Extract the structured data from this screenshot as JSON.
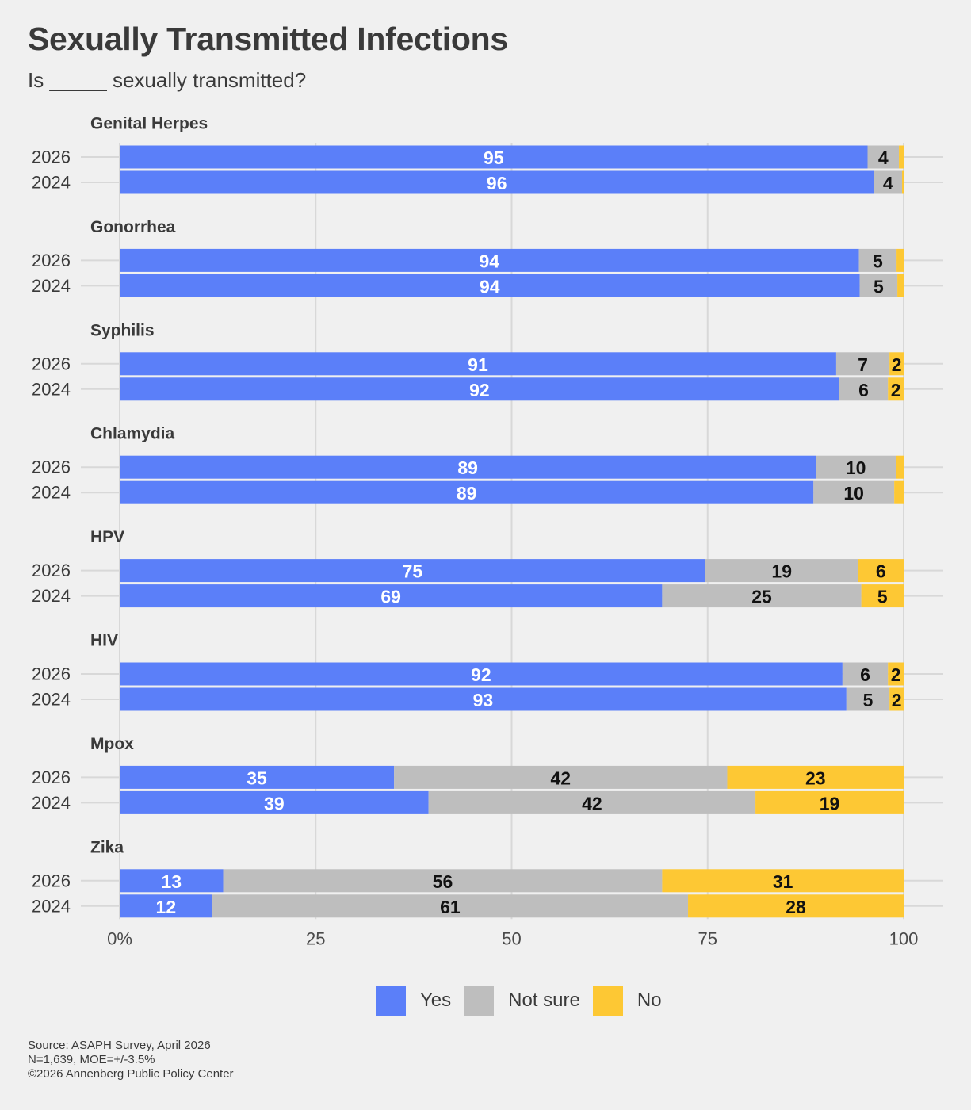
{
  "title": "Sexually Transmitted Infections",
  "subtitle": "Is _____ sexually transmitted?",
  "colors": {
    "yes": "#5b7ff9",
    "not_sure": "#bebebe",
    "no": "#fdc834",
    "background": "#f0f0f0",
    "grid": "#d8d8d8",
    "text": "#3a3a3a"
  },
  "legend": [
    {
      "label": "Yes",
      "color": "#5b7ff9"
    },
    {
      "label": "Not sure",
      "color": "#bebebe"
    },
    {
      "label": "No",
      "color": "#fdc834"
    }
  ],
  "footer": {
    "source": "Source: ASAPH Survey, April 2026",
    "sample": "N=1,639, MOE=+/-3.5%",
    "copyright": "©2026 Annenberg Public Policy Center"
  },
  "chart_data": {
    "type": "bar",
    "orientation": "horizontal",
    "stacked": true,
    "xlim": [
      0,
      100
    ],
    "x_ticks": [
      "0%",
      "25",
      "50",
      "75",
      "100"
    ],
    "x_tick_values": [
      0,
      25,
      50,
      75,
      100
    ],
    "grid": true,
    "legend_position": "bottom",
    "series_names": [
      "Yes",
      "Not sure",
      "No"
    ],
    "groups": [
      {
        "name": "Genital Herpes",
        "rows": [
          {
            "year": "2026",
            "values": [
              95.4,
              4,
              0.6
            ],
            "labels": [
              "95",
              "4",
              ""
            ]
          },
          {
            "year": "2024",
            "values": [
              96.2,
              3.6,
              0.2
            ],
            "labels": [
              "96",
              "4",
              ""
            ]
          }
        ]
      },
      {
        "name": "Gonorrhea",
        "rows": [
          {
            "year": "2026",
            "values": [
              94.3,
              4.8,
              0.9
            ],
            "labels": [
              "94",
              "5",
              ""
            ]
          },
          {
            "year": "2024",
            "values": [
              94.4,
              4.8,
              0.8
            ],
            "labels": [
              "94",
              "5",
              ""
            ]
          }
        ]
      },
      {
        "name": "Syphilis",
        "rows": [
          {
            "year": "2026",
            "values": [
              91.4,
              6.8,
              1.8
            ],
            "labels": [
              "91",
              "7",
              "2"
            ]
          },
          {
            "year": "2024",
            "values": [
              91.8,
              6.2,
              2.0
            ],
            "labels": [
              "92",
              "6",
              "2"
            ]
          }
        ]
      },
      {
        "name": "Chlamydia",
        "rows": [
          {
            "year": "2026",
            "values": [
              88.8,
              10.2,
              1.0
            ],
            "labels": [
              "89",
              "10",
              ""
            ]
          },
          {
            "year": "2024",
            "values": [
              88.5,
              10.3,
              1.2
            ],
            "labels": [
              "89",
              "10",
              ""
            ]
          }
        ]
      },
      {
        "name": "HPV",
        "rows": [
          {
            "year": "2026",
            "values": [
              74.7,
              19.5,
              5.8
            ],
            "labels": [
              "75",
              "19",
              "6"
            ]
          },
          {
            "year": "2024",
            "values": [
              69.2,
              25.4,
              5.4
            ],
            "labels": [
              "69",
              "25",
              "5"
            ]
          }
        ]
      },
      {
        "name": "HIV",
        "rows": [
          {
            "year": "2026",
            "values": [
              92.2,
              5.8,
              2.0
            ],
            "labels": [
              "92",
              "6",
              "2"
            ]
          },
          {
            "year": "2024",
            "values": [
              92.7,
              5.5,
              1.8
            ],
            "labels": [
              "93",
              "5",
              "2"
            ]
          }
        ]
      },
      {
        "name": "Mpox",
        "rows": [
          {
            "year": "2026",
            "values": [
              35.0,
              42.5,
              22.5
            ],
            "labels": [
              "35",
              "42",
              "23"
            ]
          },
          {
            "year": "2024",
            "values": [
              39.4,
              41.7,
              18.9
            ],
            "labels": [
              "39",
              "42",
              "19"
            ]
          }
        ]
      },
      {
        "name": "Zika",
        "rows": [
          {
            "year": "2026",
            "values": [
              13.2,
              56.0,
              30.8
            ],
            "labels": [
              "13",
              "56",
              "31"
            ]
          },
          {
            "year": "2024",
            "values": [
              11.8,
              60.7,
              27.5
            ],
            "labels": [
              "12",
              "61",
              "28"
            ]
          }
        ]
      }
    ]
  }
}
